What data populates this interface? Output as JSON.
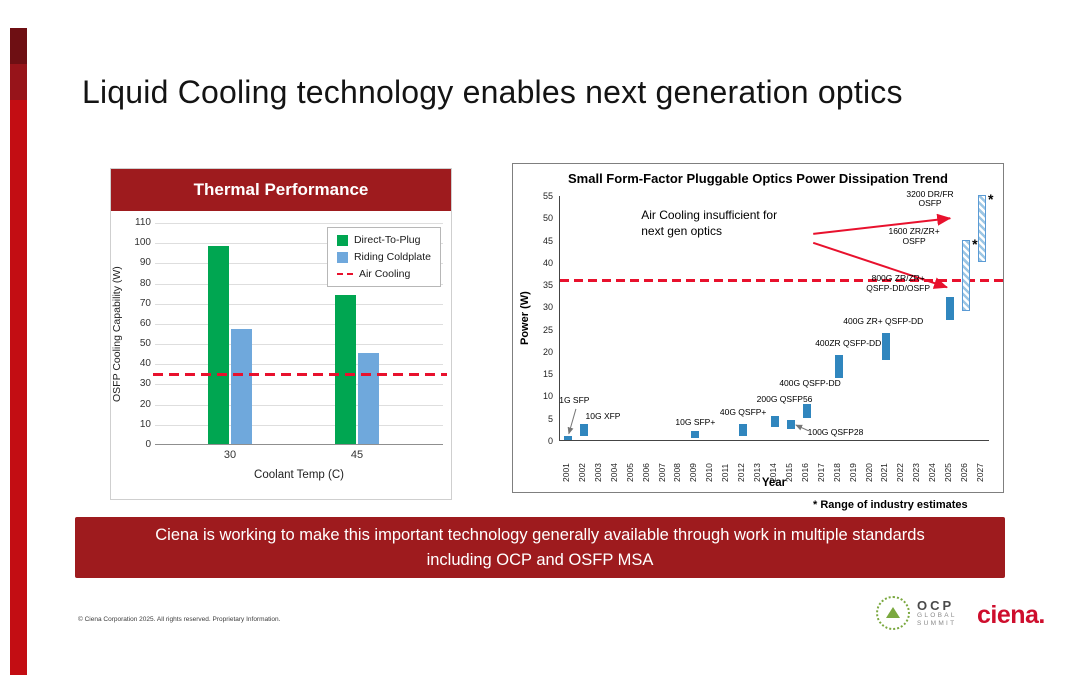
{
  "title": "Liquid Cooling  technology enables next generation optics",
  "banner": {
    "line1": "Ciena is working to make this important technology generally  available through work in multiple standards",
    "line2": "including OCP and OSFP MSA"
  },
  "footnote": "*  Range of industry estimates",
  "footer": {
    "copyright": "© Ciena Corporation 2025. All rights reserved. Proprietary Information.",
    "ciena_logo": "ciena.",
    "ocp_logo": {
      "line1": "OCP",
      "line2": "GLOBAL",
      "line3": "SUMMIT"
    }
  },
  "colors": {
    "brand_red": "#C30D13",
    "banner_red": "#9E1B1E",
    "air_cooling_red": "#E8112D",
    "direct_to_plug_green": "#00A651",
    "riding_coldplate_blue": "#6FA8DC",
    "trend_bar_blue": "#3086BE"
  },
  "chart_data": [
    {
      "type": "bar",
      "title": "Thermal Performance",
      "categories": [
        "30",
        "45"
      ],
      "series": [
        {
          "name": "Direct-To-Plug",
          "color": "#00A651",
          "values": [
            98,
            74
          ]
        },
        {
          "name": "Riding Coldplate",
          "color": "#6FA8DC",
          "values": [
            57,
            45
          ]
        }
      ],
      "reference_line": {
        "name": "Air Cooling",
        "value": 35,
        "color": "#E8112D",
        "style": "dashed"
      },
      "xlabel": "Coolant Temp (C)",
      "ylabel": "OSFP Cooling Capability (W)",
      "ylim": [
        0,
        110
      ],
      "ytick_step": 10,
      "grid": true,
      "legend_position": "top-right"
    },
    {
      "type": "bar",
      "title": "Small Form-Factor Pluggable Optics Power Dissipation Trend",
      "xlabel": "Year",
      "ylabel": "Power (W)",
      "ylim": [
        0,
        55
      ],
      "ytick_step": 5,
      "years": [
        2001,
        2027
      ],
      "grid": false,
      "air_cooling_limit": {
        "value": 36,
        "color": "#E8112D",
        "style": "dashed"
      },
      "points": [
        {
          "year": 2001,
          "label": "1G SFP",
          "lo": 0,
          "hi": 1,
          "label_x": 2001.4,
          "label_y": 9,
          "connector": {
            "from": [
              2001.5,
              7.2
            ],
            "to": [
              2001.05,
              1.6
            ]
          }
        },
        {
          "year": 2002,
          "label": "10G XFP",
          "lo": 1,
          "hi": 3.5,
          "label_x": 2003.2,
          "label_y": 5.5
        },
        {
          "year": 2009,
          "label": "10G SFP+",
          "lo": 0.5,
          "hi": 2,
          "label_x": 2009,
          "label_y": 4
        },
        {
          "year": 2012,
          "label": "40G QSFP+",
          "lo": 1,
          "hi": 3.5,
          "label_x": 2012,
          "label_y": 6.3
        },
        {
          "year": 2014,
          "label": "200G QSFP56",
          "lo": 3,
          "hi": 5.5,
          "label_x": 2014.6,
          "label_y": 9.3
        },
        {
          "year": 2015,
          "label": "100G QSFP28",
          "lo": 2.5,
          "hi": 4.5,
          "label_x": 2017.8,
          "label_y": 1.8,
          "connector": {
            "from": [
              2016.1,
              2.3
            ],
            "to": [
              2015.3,
              3.6
            ]
          }
        },
        {
          "year": 2016,
          "label": "400G QSFP-DD",
          "lo": 5,
          "hi": 8,
          "label_x": 2016.2,
          "label_y": 12.8
        },
        {
          "year": 2018,
          "label": "400ZR QSFP-DD",
          "lo": 14,
          "hi": 19,
          "label_x": 2018.6,
          "label_y": 21.8
        },
        {
          "year": 2021,
          "label": "400G ZR+ QSFP-DD",
          "lo": 18,
          "hi": 24,
          "label_x": 2020.8,
          "label_y": 26.8
        },
        {
          "year": 2025,
          "label": "800G ZR/ZR+\nQSFP-DD/OSFP",
          "lo": 27,
          "hi": 32,
          "anchor": "left-of-bar",
          "label_x": 2022.6,
          "label_y": 35.2
        },
        {
          "year": 2026,
          "label": "1600 ZR/ZR+\nOSFP",
          "lo": 29,
          "hi": 45,
          "hatched": true,
          "estimate_mark": "*",
          "anchor": "left-of-bar",
          "label_x": 2023.2,
          "label_y": 45.8
        },
        {
          "year": 2027,
          "label": "3200 DR/FR\nOSFP",
          "lo": 40,
          "hi": 55,
          "hatched": true,
          "estimate_mark": "*",
          "anchor": "left-of-bar",
          "label_x": 2024.4,
          "label_y": 54.2
        }
      ],
      "annotation": {
        "text": "Air Cooling insufficient for\nnext gen optics",
        "x": 2005.6,
        "y": 52.5,
        "arrows": [
          {
            "from": [
              2016.4,
              46.5
            ],
            "to": [
              2025.0,
              50.0
            ]
          },
          {
            "from": [
              2016.4,
              44.5
            ],
            "to": [
              2024.8,
              34.5
            ]
          }
        ]
      },
      "footnote": "*  Range of industry estimates"
    }
  ]
}
